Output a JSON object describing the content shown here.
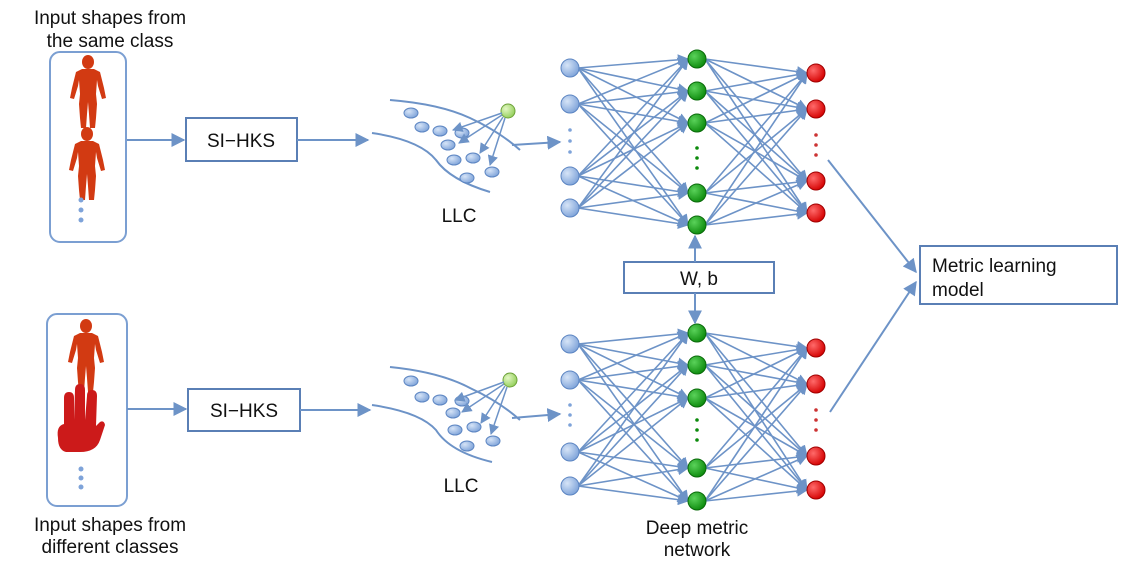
{
  "top_group": {
    "title_line1": "Input shapes from",
    "title_line2": "the same class"
  },
  "bottom_group": {
    "title_line1": "Input shapes from",
    "title_line2": "different classes"
  },
  "blocks": {
    "descriptor_top": "SI−HKS",
    "descriptor_bottom": "SI−HKS",
    "llc_top": "LLC",
    "llc_bottom": "LLC",
    "shared_params": "W, b",
    "output_line1": "Metric learning",
    "output_line2": "model",
    "network_line1": "Deep metric",
    "network_line2": "network"
  },
  "colors": {
    "input_node": "#8fb1e3",
    "hidden_node": "#12a012",
    "output_node": "#ee1111",
    "llc_anchor": "#a6dc6f",
    "edge": "#6d93c7",
    "shape": "#d23a12"
  }
}
